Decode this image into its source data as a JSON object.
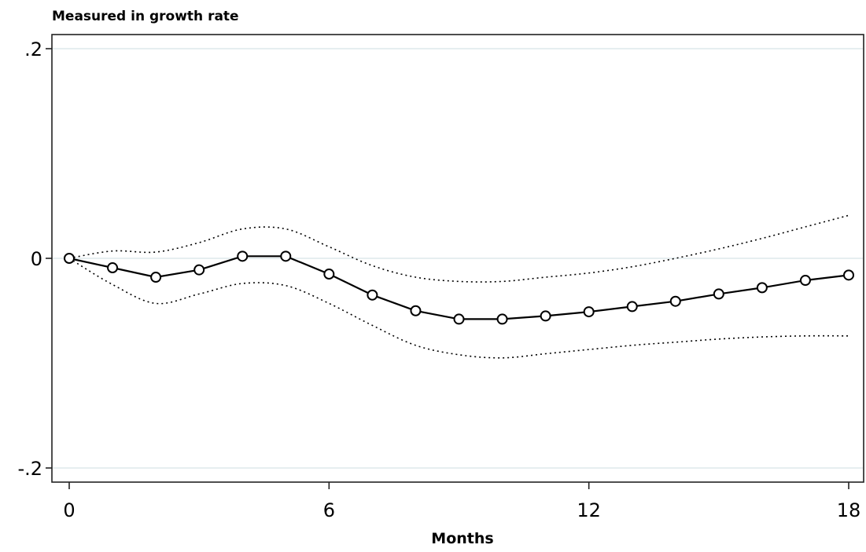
{
  "chart_data": {
    "type": "line",
    "title": "",
    "ylabel": "Measured in growth rate",
    "xlabel": "Months",
    "xlim": [
      0,
      18
    ],
    "ylim": [
      -0.2,
      0.2
    ],
    "x_ticks": [
      0,
      6,
      12,
      18
    ],
    "x_tick_labels": [
      "0",
      "6",
      "12",
      "18"
    ],
    "y_ticks": [
      -0.2,
      0,
      0.2
    ],
    "y_tick_labels": [
      "-.2",
      "0",
      ".2"
    ],
    "grid": "horizontal lines at y ticks",
    "legend": "none",
    "x": [
      0,
      1,
      2,
      3,
      4,
      5,
      6,
      7,
      8,
      9,
      10,
      11,
      12,
      13,
      14,
      15,
      16,
      17,
      18
    ],
    "series": [
      {
        "role": "estimate",
        "style": "solid line with hollow circle markers",
        "values": [
          0,
          -0.009,
          -0.018,
          -0.011,
          0.002,
          0.002,
          -0.015,
          -0.035,
          -0.05,
          -0.058,
          -0.058,
          -0.055,
          -0.051,
          -0.046,
          -0.041,
          -0.034,
          -0.028,
          -0.021,
          -0.016
        ]
      },
      {
        "role": "upper bound",
        "style": "dotted line",
        "values": [
          0,
          0.007,
          0.006,
          0.015,
          0.028,
          0.028,
          0.011,
          -0.007,
          -0.018,
          -0.022,
          -0.022,
          -0.018,
          -0.014,
          -0.008,
          0.0,
          0.009,
          0.019,
          0.03,
          0.041
        ]
      },
      {
        "role": "lower bound",
        "style": "dotted line",
        "values": [
          0,
          -0.025,
          -0.043,
          -0.034,
          -0.024,
          -0.026,
          -0.043,
          -0.064,
          -0.083,
          -0.092,
          -0.095,
          -0.091,
          -0.087,
          -0.083,
          -0.08,
          -0.077,
          -0.075,
          -0.074,
          -0.074
        ]
      }
    ],
    "colors": {
      "line": "#000000",
      "grid": "#e6eef0",
      "frame": "#222222",
      "background": "#ffffff"
    }
  }
}
